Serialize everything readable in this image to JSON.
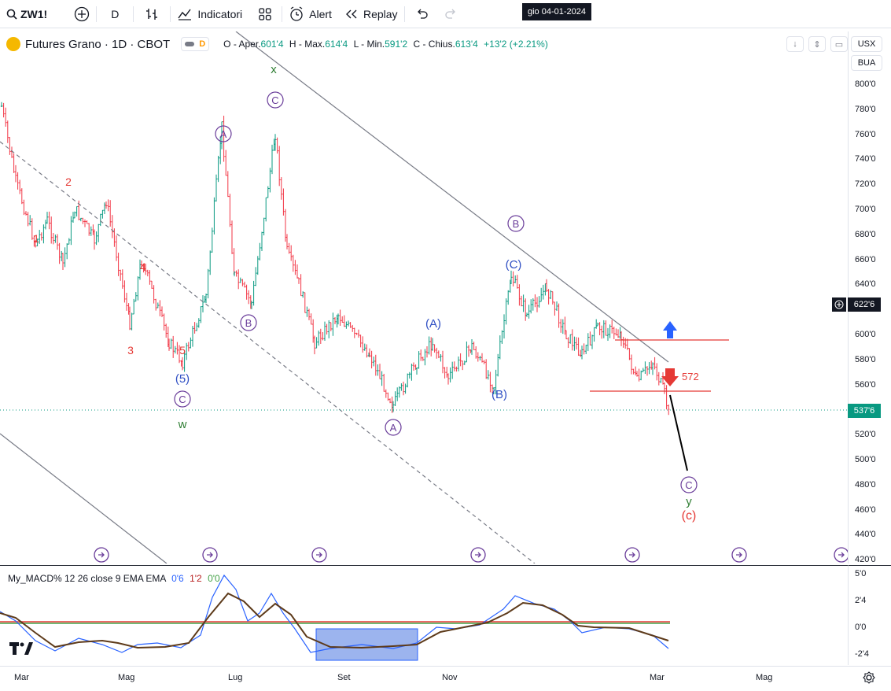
{
  "toolbar": {
    "symbol": "ZW1!",
    "interval": "D",
    "indicators_label": "Indicatori",
    "alert_label": "Alert",
    "replay_label": "Replay"
  },
  "legend": {
    "title": "Futures Grano · 1D · CBOT",
    "badge": "D",
    "open_label": "O - Aper.",
    "open": "601'4",
    "high_label": "H - Max.",
    "high": "614'4",
    "low_label": "L - Min.",
    "low": "591'2",
    "close_label": "C - Chius.",
    "close": "613'4",
    "change": "+13'2 (+2.21%)"
  },
  "axis": {
    "currency": "USX",
    "unit": "BUA",
    "crosshair_price": "622'6",
    "last_price": "537'6",
    "ticks": [
      "800'0",
      "780'0",
      "760'0",
      "740'0",
      "720'0",
      "700'0",
      "680'0",
      "660'0",
      "640'0",
      "620'0",
      "600'0",
      "580'0",
      "560'0",
      "540'0",
      "520'0",
      "500'0",
      "480'0",
      "460'0",
      "440'0",
      "420'0"
    ]
  },
  "macd": {
    "label": "My_MACD% 12 26 close 9 EMA EMA",
    "v1": "0'6",
    "v2": "1'2",
    "v3": "0'0",
    "ticks": [
      "5'0",
      "2'4",
      "0'0",
      "-2'4"
    ]
  },
  "time_axis": {
    "ticks": [
      "Mar",
      "Mag",
      "Lug",
      "Set",
      "Nov",
      "Mar",
      "Mag"
    ],
    "cursor": "gio 04-01-2024"
  },
  "annotations": {
    "waves": [
      "x",
      "C",
      "A",
      "B",
      "(C)",
      "(A)",
      "(B)",
      "A",
      "B",
      "C",
      "(5)",
      "w",
      "y",
      "(c)",
      "1",
      "2",
      "3",
      "4",
      "5"
    ],
    "level_label": "572"
  },
  "colors": {
    "up": "#089981",
    "down": "#f23645",
    "wave_purple": "#6a3d9a",
    "wave_blue": "#2f4fc4",
    "wave_red": "#e53935",
    "wave_green": "#2e7d32",
    "accent": "#2962ff"
  },
  "icons": [
    "search-icon",
    "plus-circle-icon",
    "bar-style-icon",
    "indicators-icon",
    "templates-icon",
    "alert-icon",
    "replay-icon",
    "undo-icon",
    "redo-icon",
    "settings-icon"
  ]
}
